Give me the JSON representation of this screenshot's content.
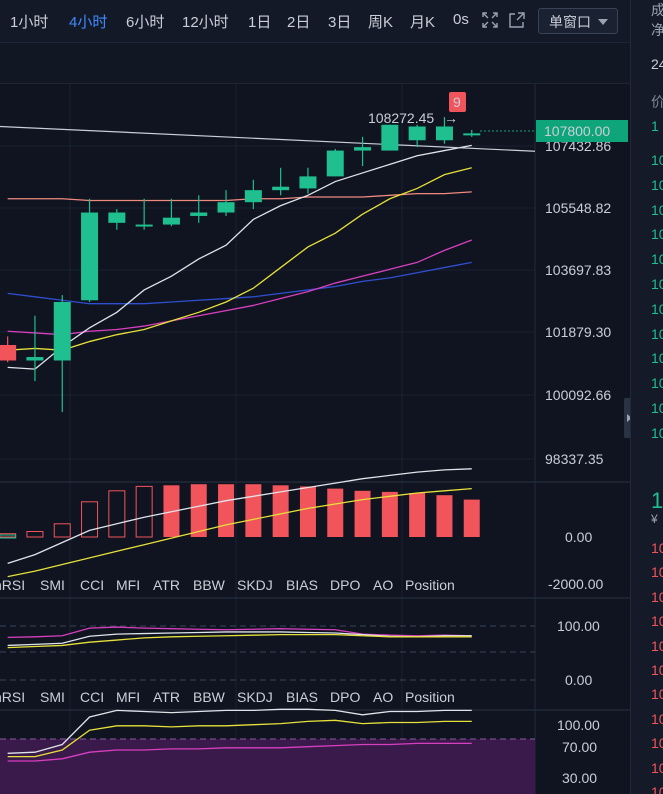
{
  "timeframes": [
    {
      "label": "1小时",
      "active": false
    },
    {
      "label": "4小时",
      "active": true
    },
    {
      "label": "6小时",
      "active": false
    },
    {
      "label": "12小时",
      "active": false
    },
    {
      "label": "1日",
      "active": false
    },
    {
      "label": "2日",
      "active": false
    },
    {
      "label": "3日",
      "active": false
    },
    {
      "label": "周K",
      "active": false
    },
    {
      "label": "月K",
      "active": false
    },
    {
      "label": "0s",
      "active": false
    }
  ],
  "icons": {
    "fullscreen": "expand-icon",
    "popout": "popout-icon"
  },
  "window_select": {
    "label": "单窗口"
  },
  "price_axis": [
    "107432.86",
    "105548.82",
    "103697.83",
    "101879.30",
    "100092.66",
    "98337.35"
  ],
  "current_price": "107800.00",
  "high_marker": "108272.45",
  "td_count": "9",
  "macd_axis": [
    "0.00",
    "-2000.00"
  ],
  "rsi_axis": [
    "100.00",
    "0.00"
  ],
  "kdj_axis": [
    "100.00",
    "70.00",
    "30.00"
  ],
  "indicator_tabs": [
    "hRSI",
    "SMI",
    "CCI",
    "MFI",
    "ATR",
    "BBW",
    "SKDJ",
    "BIAS",
    "DPO",
    "AO",
    "Position"
  ],
  "colors": {
    "up": "#1fbf8f",
    "down": "#f2545b",
    "accent": "#3d8bff",
    "price_tag": "#0ea57a"
  },
  "right_panel": {
    "top": [
      "成",
      "净"
    ],
    "row1": "24",
    "header": "价",
    "first_row": "1",
    "rows": [
      "10",
      "10",
      "10",
      "10",
      "10",
      "10",
      "10",
      "10",
      "10",
      "10",
      "10",
      "10"
    ],
    "big_price": "1",
    "currency": "¥",
    "bottom_rows": [
      "10",
      "10",
      "10",
      "10",
      "10",
      "10",
      "10",
      "10",
      "10",
      "10",
      "10"
    ]
  },
  "chart_data": {
    "type": "candlestick",
    "candles": [
      {
        "o": 101650,
        "h": 101900,
        "l": 101150,
        "c": 101200
      },
      {
        "o": 101200,
        "h": 102500,
        "l": 100600,
        "c": 101300
      },
      {
        "o": 101200,
        "h": 103100,
        "l": 99700,
        "c": 102900
      },
      {
        "o": 102950,
        "h": 105900,
        "l": 102900,
        "c": 105500
      },
      {
        "o": 105200,
        "h": 105600,
        "l": 105000,
        "c": 105500
      },
      {
        "o": 105100,
        "h": 105900,
        "l": 105000,
        "c": 105150
      },
      {
        "o": 105150,
        "h": 105900,
        "l": 105100,
        "c": 105350
      },
      {
        "o": 105400,
        "h": 106000,
        "l": 105200,
        "c": 105500
      },
      {
        "o": 105500,
        "h": 106150,
        "l": 105400,
        "c": 105800
      },
      {
        "o": 105800,
        "h": 106450,
        "l": 105600,
        "c": 106150
      },
      {
        "o": 106150,
        "h": 106800,
        "l": 106000,
        "c": 106250
      },
      {
        "o": 106200,
        "h": 106800,
        "l": 106050,
        "c": 106550
      },
      {
        "o": 106550,
        "h": 107350,
        "l": 106550,
        "c": 107300
      },
      {
        "o": 107300,
        "h": 107700,
        "l": 106850,
        "c": 107400
      },
      {
        "o": 107300,
        "h": 108050,
        "l": 107300,
        "c": 108050
      },
      {
        "o": 107600,
        "h": 108050,
        "l": 107400,
        "c": 108000
      },
      {
        "o": 107600,
        "h": 108272.45,
        "l": 107500,
        "c": 108000
      },
      {
        "o": 107800,
        "h": 107900,
        "l": 107700,
        "c": 107800
      }
    ],
    "ma_white": [
      101000,
      100950,
      101600,
      102150,
      102600,
      103250,
      103650,
      104150,
      104550,
      105300,
      105700,
      106000,
      106400,
      106650,
      106900,
      107150,
      107300,
      107450
    ],
    "ma_yellow": [
      101500,
      101550,
      101500,
      101750,
      101950,
      102100,
      102350,
      102600,
      102900,
      103300,
      103900,
      104500,
      104900,
      105450,
      105900,
      106200,
      106600,
      106800
    ],
    "ma_magenta": [
      102050,
      102000,
      101950,
      102050,
      102100,
      102200,
      102350,
      102500,
      102650,
      102800,
      103000,
      103200,
      103450,
      103650,
      103850,
      104050,
      104400,
      104700
    ],
    "ma_blue": [
      103150,
      103050,
      102950,
      102850,
      102850,
      102850,
      102900,
      102950,
      103000,
      103050,
      103150,
      103250,
      103350,
      103500,
      103600,
      103750,
      103900,
      104050
    ],
    "ma_salmon": [
      105900,
      105900,
      105900,
      105850,
      105850,
      105850,
      105850,
      105850,
      105850,
      105900,
      105900,
      105950,
      105950,
      105950,
      106000,
      106050,
      106050,
      106100
    ],
    "trend_line": [
      108000,
      107280
    ],
    "macd_hist": [
      150,
      250,
      600,
      1600,
      2100,
      2300,
      2350,
      2400,
      2400,
      2400,
      2350,
      2300,
      2200,
      2100,
      2050,
      2000,
      1900,
      1700
    ],
    "macd_white": [
      -1200,
      -800,
      -250,
      300,
      600,
      900,
      1150,
      1400,
      1650,
      1850,
      2050,
      2250,
      2450,
      2650,
      2800,
      2950,
      3050,
      3100
    ],
    "macd_yellow": [
      -1800,
      -1550,
      -1250,
      -950,
      -650,
      -350,
      -50,
      250,
      550,
      800,
      1050,
      1300,
      1500,
      1700,
      1850,
      2000,
      2100,
      2200
    ],
    "rsi_magenta": [
      79,
      80,
      82,
      96,
      98,
      96,
      95,
      94,
      93,
      94,
      95,
      94,
      93,
      85,
      83,
      82,
      83,
      82
    ],
    "rsi_white": [
      64,
      66,
      68,
      81,
      85,
      86,
      87,
      88,
      89,
      89,
      89,
      88,
      87,
      84,
      81,
      80,
      82,
      82
    ],
    "rsi_yellow": [
      60,
      62,
      64,
      70,
      74,
      78,
      80,
      81,
      82,
      83,
      84,
      84,
      84,
      82,
      80,
      80,
      80,
      80
    ],
    "kdj_white": [
      57,
      58,
      65,
      90,
      96,
      95,
      94,
      95,
      96,
      96,
      97,
      97,
      96,
      92,
      95,
      95,
      96,
      96
    ],
    "kdj_yellow": [
      54,
      54,
      60,
      78,
      82,
      82,
      81,
      82,
      82,
      83,
      84,
      86,
      87,
      84,
      85,
      85,
      86,
      86
    ],
    "kdj_magenta": [
      50,
      50,
      52,
      58,
      60,
      60,
      61,
      61,
      62,
      62,
      62,
      63,
      64,
      65,
      65,
      66,
      66,
      66
    ],
    "y_range": [
      98000,
      108800
    ]
  }
}
